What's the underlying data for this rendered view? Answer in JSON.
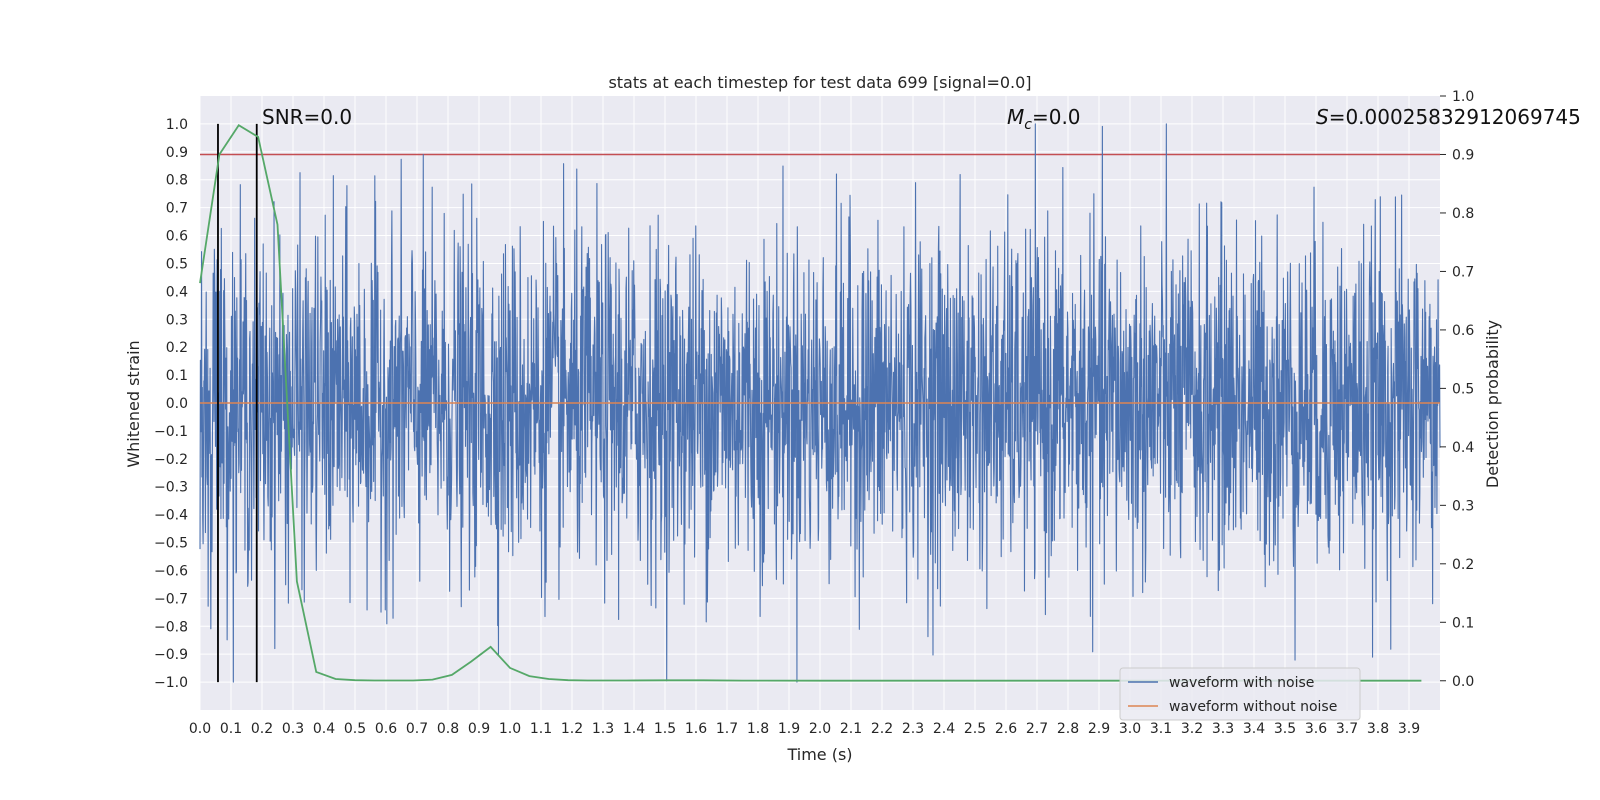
{
  "chart_data": {
    "type": "line",
    "title": "stats at each timestep for test data 699 [signal=0.0]",
    "xlabel": "Time (s)",
    "ylabel": "Whitened strain",
    "y2label": "Detection probability",
    "xlim": [
      0.0,
      4.0
    ],
    "ylim": [
      -1.1,
      1.1
    ],
    "y2lim": [
      -0.05,
      1.0
    ],
    "x_ticks": [
      "0.0",
      "0.1",
      "0.2",
      "0.3",
      "0.4",
      "0.5",
      "0.6",
      "0.7",
      "0.8",
      "0.9",
      "1.0",
      "1.1",
      "1.2",
      "1.3",
      "1.4",
      "1.5",
      "1.6",
      "1.7",
      "1.8",
      "1.9",
      "2.0",
      "2.1",
      "2.2",
      "2.3",
      "2.4",
      "2.5",
      "2.6",
      "2.7",
      "2.8",
      "2.9",
      "3.0",
      "3.1",
      "3.2",
      "3.3",
      "3.4",
      "3.5",
      "3.6",
      "3.7",
      "3.8",
      "3.9"
    ],
    "y_ticks": [
      "1.0",
      "0.9",
      "0.8",
      "0.7",
      "0.6",
      "0.5",
      "0.4",
      "0.3",
      "0.2",
      "0.1",
      "0.0",
      "−0.1",
      "−0.2",
      "−0.3",
      "−0.4",
      "−0.5",
      "−0.6",
      "−0.7",
      "−0.8",
      "−0.9",
      "−1.0"
    ],
    "y2_ticks": [
      "1.0",
      "0.9",
      "0.8",
      "0.7",
      "0.6",
      "0.5",
      "0.4",
      "0.3",
      "0.2",
      "0.1",
      "0.0"
    ],
    "grid": true,
    "legend_position": "bottom-right",
    "annotations": {
      "snr": "SNR=0.0",
      "mc_symbol": "M",
      "mc_sub": "c",
      "mc_value": "=0.0",
      "s_symbol": "S",
      "s_value": "=0.00025832912069745"
    },
    "series": [
      {
        "name": "waveform with noise",
        "color": "#4c72b0",
        "kind": "noise",
        "amplitude_range": [
          -1.0,
          1.0
        ]
      },
      {
        "name": "waveform without noise",
        "color": "#dd8452",
        "kind": "flat",
        "value": 0.0
      },
      {
        "name": "detection probability",
        "color": "#55a868",
        "axis": "right",
        "x": [
          0.0,
          0.0625,
          0.125,
          0.1875,
          0.25,
          0.3125,
          0.375,
          0.4375,
          0.5,
          0.5625,
          0.625,
          0.6875,
          0.75,
          0.8125,
          0.875,
          0.9375,
          1.0,
          1.0625,
          1.125,
          1.1875,
          1.25,
          1.375,
          1.5,
          1.625,
          1.75,
          2.0,
          2.5,
          3.0,
          3.5,
          3.94
        ],
        "values": [
          0.68,
          0.9,
          0.95,
          0.93,
          0.78,
          0.17,
          0.015,
          0.003,
          0.001,
          0.0005,
          0.0004,
          0.0005,
          0.002,
          0.01,
          0.033,
          0.058,
          0.022,
          0.008,
          0.003,
          0.001,
          0.0005,
          0.0005,
          0.0008,
          0.0008,
          0.0002,
          0.0001,
          0.0001,
          0.0001,
          0.0001,
          0.0001
        ]
      }
    ],
    "threshold": {
      "axis": "right",
      "value": 0.9,
      "color": "#c44e52"
    },
    "vertical_lines": [
      {
        "x": 0.058,
        "color": "#000000"
      },
      {
        "x": 0.183,
        "color": "#000000"
      }
    ]
  }
}
